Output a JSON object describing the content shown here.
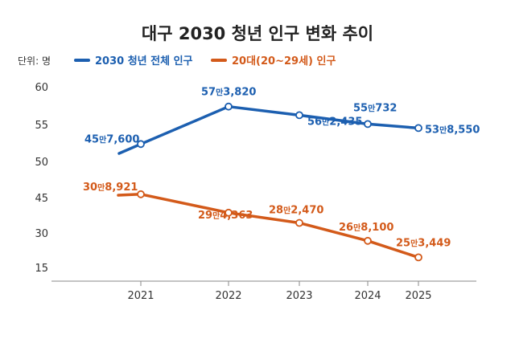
{
  "title": "대구 2030 청년 인구 변화 추이",
  "unit_label": "단위: 명",
  "colors": {
    "total": "#1c5fb0",
    "twenties": "#d35a1a"
  },
  "chart_data": {
    "type": "line",
    "title": "대구 2030 청년 인구 변화 추이",
    "xlabel": "",
    "ylabel": "",
    "categories": [
      "2021",
      "2022",
      "2023",
      "2024",
      "2025"
    ],
    "y_ticks": [
      "60",
      "55",
      "50",
      "45",
      "30",
      "15"
    ],
    "legend_position": "top-left",
    "grid": false,
    "series": [
      {
        "name": "2030 청년 전체 인구",
        "values": [
          457600,
          573820,
          562435,
          550732,
          538550
        ],
        "labels": [
          {
            "man": "45",
            "rest": "7,600"
          },
          {
            "man": "57",
            "rest": "3,820"
          },
          {
            "man": "56",
            "rest": "2,435"
          },
          {
            "man": "55",
            "rest": "732"
          },
          {
            "man": "53",
            "rest": "8,550"
          }
        ]
      },
      {
        "name": "20대(20~29세) 인구",
        "values": [
          308921,
          294363,
          282470,
          268100,
          253449
        ],
        "labels": [
          {
            "man": "30",
            "rest": "8,921"
          },
          {
            "man": "29",
            "rest": "4,363"
          },
          {
            "man": "28",
            "rest": "2,470"
          },
          {
            "man": "26",
            "rest": "8,100"
          },
          {
            "man": "25",
            "rest": "3,449"
          }
        ]
      }
    ],
    "man_unit": "만"
  }
}
